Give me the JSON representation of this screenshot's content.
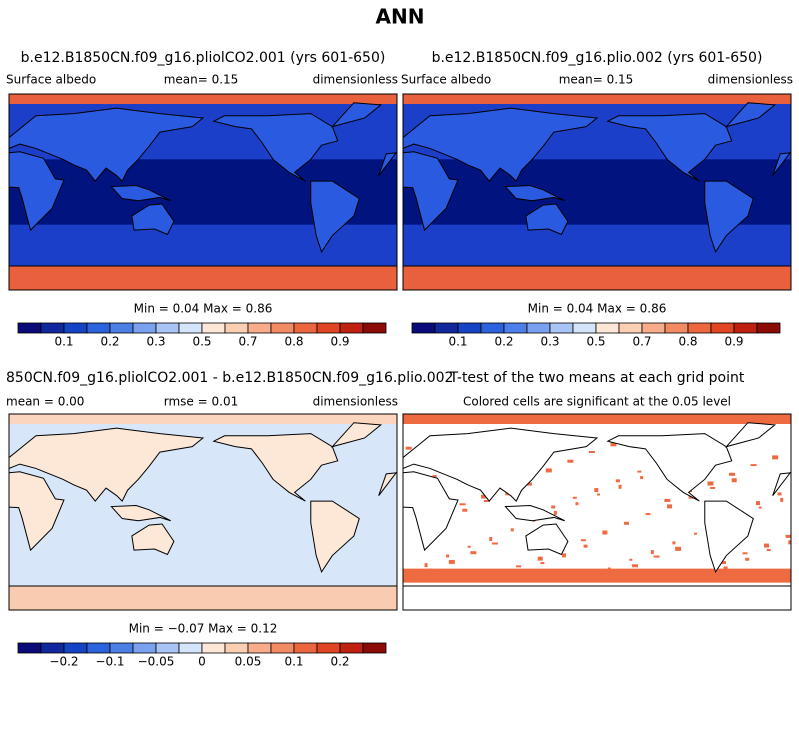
{
  "title": "ANN",
  "panels": [
    {
      "title": "b.e12.B1850CN.f09_g16.pliolCO2.001 (yrs 601-650)",
      "left": "Surface albedo",
      "center": "mean=    0.15",
      "right": "dimensionless",
      "stats": "Min =   0.04 Max =   0.86",
      "colorbar": {
        "colors": [
          "#0a0a7a",
          "#10289c",
          "#1644c6",
          "#2c62dc",
          "#4c80e8",
          "#7aa0f0",
          "#a8c4f5",
          "#d4e4fa",
          "#fde8d8",
          "#fbcfb4",
          "#f7ad8c",
          "#f28a64",
          "#ec6640",
          "#e04420",
          "#c02010",
          "#8b0a05"
        ],
        "labels": [
          "0.1",
          "0.2",
          "0.3",
          "0.5",
          "0.7",
          "0.8",
          "0.9"
        ]
      }
    },
    {
      "title": "b.e12.B1850CN.f09_g16.plio.002 (yrs 601-650)",
      "left": "Surface albedo",
      "center": "mean=    0.15",
      "right": "dimensionless",
      "stats": "Min =   0.04 Max =   0.86",
      "colorbar": {
        "colors": [
          "#0a0a7a",
          "#10289c",
          "#1644c6",
          "#2c62dc",
          "#4c80e8",
          "#7aa0f0",
          "#a8c4f5",
          "#d4e4fa",
          "#fde8d8",
          "#fbcfb4",
          "#f7ad8c",
          "#f28a64",
          "#ec6640",
          "#e04420",
          "#c02010",
          "#8b0a05"
        ],
        "labels": [
          "0.1",
          "0.2",
          "0.3",
          "0.5",
          "0.7",
          "0.8",
          "0.9"
        ]
      }
    },
    {
      "title": "850CN.f09_g16.pliolCO2.001 - b.e12.B1850CN.f09_g16.plio.002",
      "left": "mean =    0.00",
      "center": "rmse =    0.01",
      "right": "dimensionless",
      "stats": "Min =  −0.07 Max =   0.12",
      "colorbar": {
        "colors": [
          "#0a0a7a",
          "#10289c",
          "#1644c6",
          "#2c62dc",
          "#4c80e8",
          "#7aa0f0",
          "#a8c4f5",
          "#d4e4fa",
          "#fde8d8",
          "#fbcfb4",
          "#f7ad8c",
          "#f28a64",
          "#ec6640",
          "#e04420",
          "#c02010",
          "#8b0a05"
        ],
        "labels": [
          "−0.2",
          "−0.1",
          "−0.05",
          "0",
          "0.05",
          "0.1",
          "0.2"
        ]
      }
    },
    {
      "title": "T-test of the two means at each grid point",
      "subtitle": "Colored cells are significant at the 0.05 level"
    }
  ]
}
